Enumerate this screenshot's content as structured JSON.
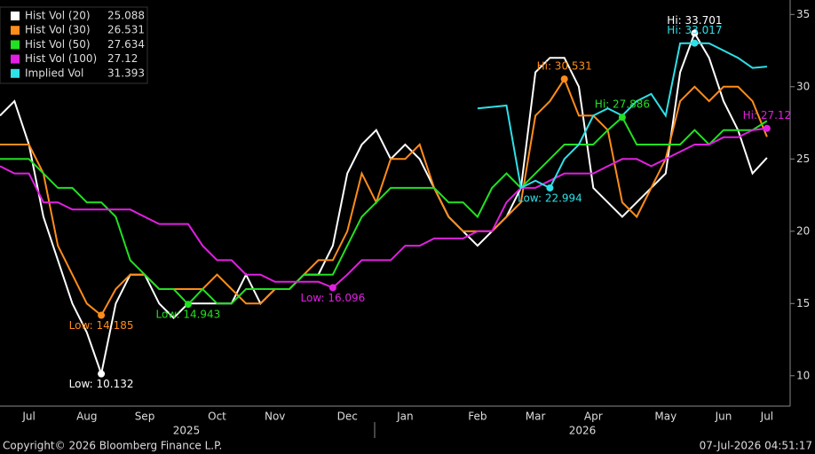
{
  "chart_data": {
    "type": "line",
    "categories": [
      null,
      null,
      "Jul",
      null,
      null,
      null,
      "Aug",
      null,
      null,
      null,
      "Sep",
      null,
      null,
      null,
      null,
      "Oct",
      null,
      null,
      null,
      "Nov",
      null,
      null,
      null,
      null,
      "Dec",
      null,
      null,
      null,
      "Jan",
      null,
      null,
      null,
      null,
      "Feb",
      null,
      null,
      null,
      "Mar",
      null,
      null,
      null,
      "Apr",
      null,
      null,
      null,
      null,
      "May",
      null,
      null,
      null,
      "Jun",
      null,
      null,
      "Jul"
    ],
    "years": [
      "2025",
      "2026"
    ],
    "ylim": [
      7.9,
      36
    ],
    "yticks": [
      10,
      15,
      20,
      25,
      30,
      35
    ],
    "series": [
      {
        "name": "Hist Vol (20)",
        "color": "#ffffff",
        "values": [
          28,
          29,
          26,
          21,
          18,
          15,
          13,
          10.132,
          15,
          17,
          17,
          15,
          14,
          15,
          15,
          15,
          15,
          17,
          15,
          16,
          16,
          17,
          17,
          19,
          24,
          26,
          27,
          25,
          26,
          25,
          23,
          21,
          20,
          19,
          20,
          21,
          23,
          31,
          32,
          32,
          30,
          23,
          22,
          21,
          22,
          23,
          24,
          31,
          33.701,
          32,
          29,
          27,
          24,
          25.088
        ],
        "markers": [
          {
            "label": "Low: 10.132",
            "value": 10.132
          },
          {
            "label": "Hi: 33.701",
            "value": 33.701
          }
        ]
      },
      {
        "name": "Hist Vol (30)",
        "color": "#ff8c1a",
        "values": [
          26,
          26,
          26,
          24,
          19,
          17,
          15,
          14.185,
          16,
          17,
          17,
          16,
          16,
          16,
          16,
          17,
          16,
          15,
          15,
          16,
          16,
          17,
          18,
          18,
          20,
          24,
          22,
          25,
          25,
          26,
          23,
          21,
          20,
          20,
          20,
          21,
          22,
          28,
          29,
          30.531,
          28,
          28,
          27,
          22,
          21,
          23,
          25,
          29,
          30,
          29,
          30,
          30,
          29,
          26.531
        ],
        "markers": [
          {
            "label": "Low: 14.185",
            "value": 14.185
          },
          {
            "label": "Hi: 30.531",
            "value": 30.531
          }
        ]
      },
      {
        "name": "Hist Vol (50)",
        "color": "#22e022",
        "values": [
          25,
          25,
          25,
          24,
          23,
          23,
          22,
          22,
          21,
          18,
          17,
          16,
          16,
          14.943,
          16,
          15,
          15,
          16,
          16,
          16,
          16,
          17,
          17,
          17,
          19,
          21,
          22,
          23,
          23,
          23,
          23,
          22,
          22,
          21,
          23,
          24,
          23,
          24,
          25,
          26,
          26,
          26,
          27,
          27.886,
          26,
          26,
          26,
          26,
          27,
          26,
          27,
          27,
          27,
          27.634
        ],
        "markers": [
          {
            "label": "Low: 14.943",
            "value": 14.943
          },
          {
            "label": "Hi: 27.886",
            "value": 27.886
          }
        ]
      },
      {
        "name": "Hist Vol (100)",
        "color": "#e020e0",
        "values": [
          24.5,
          24,
          24,
          22,
          22,
          21.5,
          21.5,
          21.5,
          21.5,
          21.5,
          21,
          20.5,
          20.5,
          20.5,
          19,
          18,
          18,
          17,
          17,
          16.5,
          16.5,
          16.5,
          16.5,
          16.096,
          17,
          18,
          18,
          18,
          19,
          19,
          19.5,
          19.5,
          19.5,
          20,
          20,
          22,
          23,
          23,
          23.5,
          24,
          24,
          24,
          24.5,
          25,
          25,
          24.5,
          25,
          25.5,
          26,
          26,
          26.5,
          26.5,
          27,
          27.12
        ],
        "markers": [
          {
            "label": "Low: 16.096",
            "value": 16.096
          },
          {
            "label": "Hi: 27.12",
            "value": 27.12
          }
        ]
      },
      {
        "name": "Implied Vol",
        "color": "#2ee0e8",
        "values": [
          null,
          null,
          null,
          null,
          null,
          null,
          null,
          null,
          null,
          null,
          null,
          null,
          null,
          null,
          null,
          null,
          null,
          null,
          null,
          null,
          null,
          null,
          null,
          null,
          null,
          null,
          null,
          null,
          null,
          null,
          null,
          null,
          null,
          28.5,
          28.6,
          28.7,
          23,
          23.5,
          22.994,
          25,
          26,
          28,
          28.5,
          28,
          29,
          29.5,
          28,
          33,
          33.017,
          33,
          32.5,
          32,
          31.3,
          31.393
        ],
        "markers": [
          {
            "label": "Low: 22.994",
            "value": 22.994
          },
          {
            "label": "Hi: 33.017",
            "value": 33.017
          }
        ]
      }
    ],
    "footer_left": "Copyright© 2026 Bloomberg Finance L.P.",
    "footer_right": "07-Jul-2026 04:51:17"
  }
}
